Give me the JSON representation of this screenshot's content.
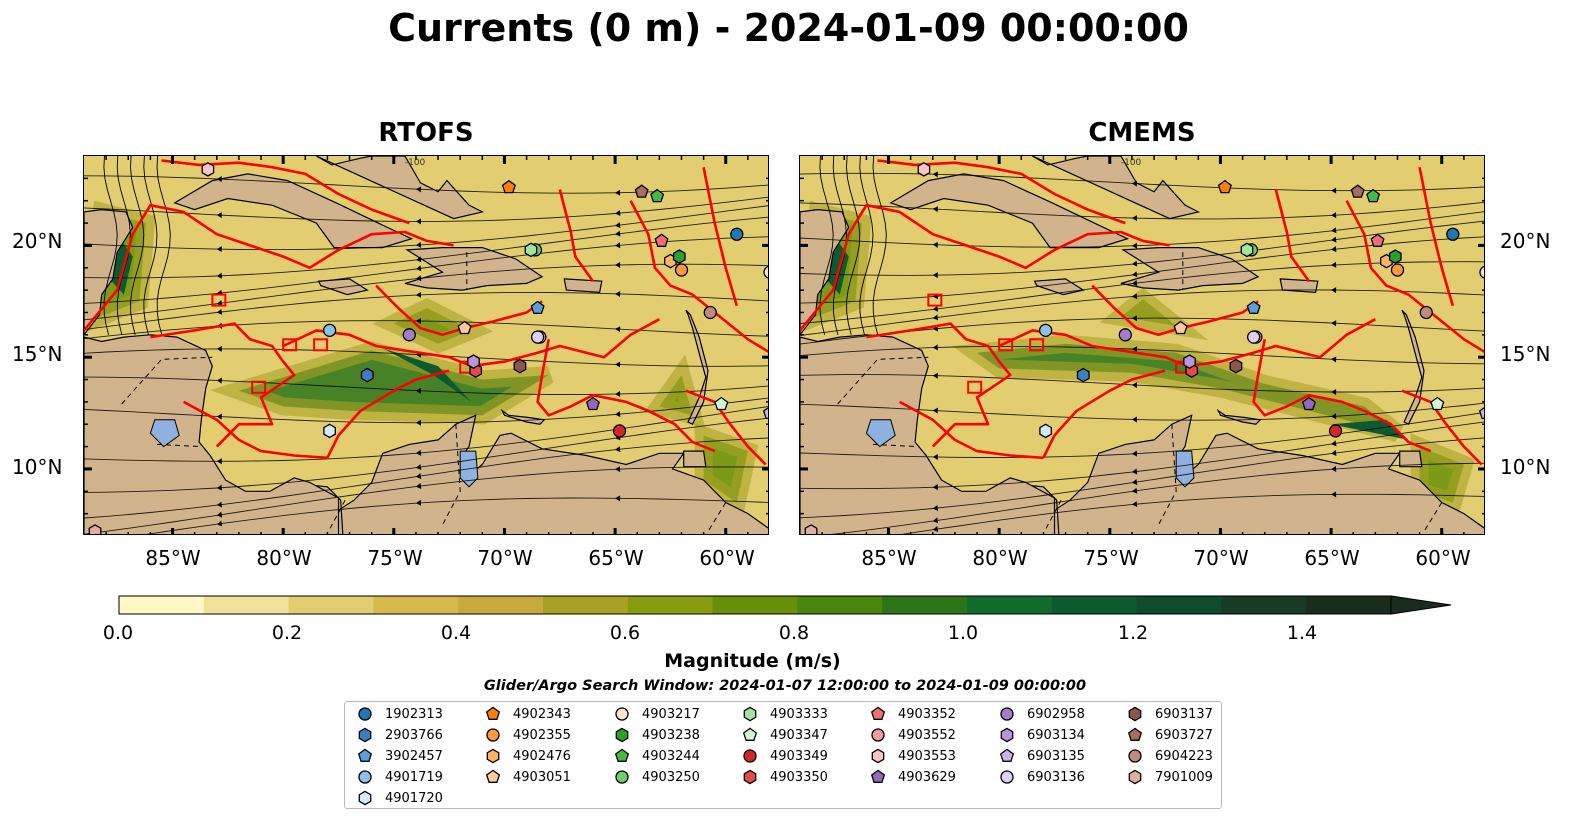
{
  "title": "Currents (0 m) - 2024-01-09 00:00:00",
  "panels": [
    {
      "title": "RTOFS"
    },
    {
      "title": "CMEMS"
    }
  ],
  "map": {
    "lon_range": [
      -89,
      -58
    ],
    "lat_range": [
      7,
      24
    ],
    "lon_ticks": [
      "85°W",
      "80°W",
      "75°W",
      "70°W",
      "65°W",
      "60°W"
    ],
    "lat_ticks": [
      "20°N",
      "15°N",
      "10°N"
    ],
    "land_color": "#d2b48c",
    "contour_label": "-100",
    "eez_color": "#ff0000",
    "lake_color": "#8fb1e0"
  },
  "colorbar": {
    "label": "Magnitude (m/s)",
    "ticks": [
      "0.0",
      "0.2",
      "0.4",
      "0.6",
      "0.8",
      "1.0",
      "1.2",
      "1.4"
    ],
    "min": 0.0,
    "max": 1.5,
    "colors": [
      "#fdf8c4",
      "#efe29a",
      "#e2cd71",
      "#d5b94b",
      "#c6ab3c",
      "#a7a224",
      "#879b11",
      "#679008",
      "#4a850e",
      "#2d7419",
      "#116b2c",
      "#0d5a30",
      "#124a2c",
      "#173b26",
      "#1a2c1d"
    ],
    "extend": "max"
  },
  "legend": {
    "title": "Glider/Argo Search Window: 2024-01-07 12:00:00 to 2024-01-09 00:00:00",
    "items": [
      {
        "id": "1902313",
        "marker": "circle",
        "color": "#1f77b4"
      },
      {
        "id": "2903766",
        "marker": "hexagon",
        "color": "#3a7fc0"
      },
      {
        "id": "3902457",
        "marker": "pentagon",
        "color": "#5a9fdc"
      },
      {
        "id": "4901719",
        "marker": "circle",
        "color": "#8cc1ea"
      },
      {
        "id": "4901720",
        "marker": "hexagon",
        "color": "#d4e9fa"
      },
      {
        "id": "4902343",
        "marker": "pentagon",
        "color": "#ff7f0e"
      },
      {
        "id": "4902355",
        "marker": "circle",
        "color": "#ff9a3c"
      },
      {
        "id": "4902476",
        "marker": "hexagon",
        "color": "#ffb366"
      },
      {
        "id": "4903051",
        "marker": "pentagon",
        "color": "#ffcc99"
      },
      {
        "id": "4903217",
        "marker": "circle",
        "color": "#ffe3cc"
      },
      {
        "id": "4903238",
        "marker": "hexagon",
        "color": "#2ca02c"
      },
      {
        "id": "4903244",
        "marker": "pentagon",
        "color": "#45b845"
      },
      {
        "id": "4903250",
        "marker": "circle",
        "color": "#6ccf6c"
      },
      {
        "id": "4903333",
        "marker": "hexagon",
        "color": "#a3e4a3"
      },
      {
        "id": "4903347",
        "marker": "pentagon",
        "color": "#d2f5d2"
      },
      {
        "id": "4903349",
        "marker": "circle",
        "color": "#d62728"
      },
      {
        "id": "4903350",
        "marker": "hexagon",
        "color": "#e34a4b"
      },
      {
        "id": "4903352",
        "marker": "pentagon",
        "color": "#ee7072"
      },
      {
        "id": "4903552",
        "marker": "circle",
        "color": "#f29a9b"
      },
      {
        "id": "4903553",
        "marker": "hexagon",
        "color": "#f8c4c5"
      },
      {
        "id": "4903629",
        "marker": "pentagon",
        "color": "#9467bd"
      },
      {
        "id": "6902958",
        "marker": "circle",
        "color": "#a37dcc"
      },
      {
        "id": "6903134",
        "marker": "hexagon",
        "color": "#b796db"
      },
      {
        "id": "6903135",
        "marker": "pentagon",
        "color": "#cbb2e8"
      },
      {
        "id": "6903136",
        "marker": "circle",
        "color": "#e0d0f4"
      },
      {
        "id": "6903137",
        "marker": "hexagon",
        "color": "#8c564b"
      },
      {
        "id": "6903727",
        "marker": "pentagon",
        "color": "#a56e62"
      },
      {
        "id": "6904223",
        "marker": "circle",
        "color": "#c08b7e"
      },
      {
        "id": "7901009",
        "marker": "hexagon",
        "color": "#e0ad9e"
      }
    ]
  }
}
